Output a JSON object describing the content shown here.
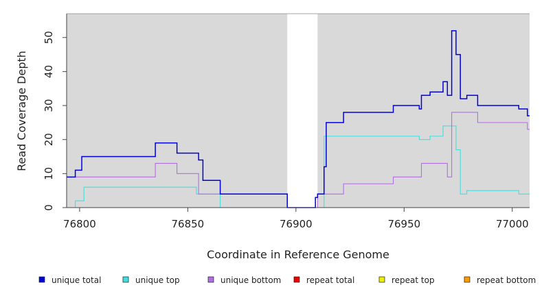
{
  "chart_data": {
    "type": "line",
    "step": true,
    "title": "",
    "xlabel": "Coordinate in Reference Genome",
    "ylabel": "Read Coverage Depth",
    "xlim": [
      76794,
      77008
    ],
    "ylim": [
      0,
      57
    ],
    "xticks": [
      76800,
      76850,
      76900,
      76950,
      77000
    ],
    "yticks": [
      0,
      10,
      20,
      30,
      40,
      50
    ],
    "grid": false,
    "background_color": "#d9d9d9",
    "shaded_regions": [
      {
        "x0": 76794,
        "x1": 76896
      },
      {
        "x0": 76910,
        "x1": 77008
      }
    ],
    "legend_position": "bottom",
    "series": [
      {
        "name": "unique total",
        "color": "#0000dd",
        "points": [
          [
            76794,
            9
          ],
          [
            76798,
            11
          ],
          [
            76801,
            15
          ],
          [
            76835,
            19
          ],
          [
            76845,
            16
          ],
          [
            76855,
            14
          ],
          [
            76857,
            8
          ],
          [
            76865,
            4
          ],
          [
            76896,
            0
          ],
          [
            76909,
            3
          ],
          [
            76910,
            4
          ],
          [
            76913,
            12
          ],
          [
            76914,
            25
          ],
          [
            76922,
            28
          ],
          [
            76945,
            30
          ],
          [
            76957,
            29
          ],
          [
            76958,
            33
          ],
          [
            76962,
            34
          ],
          [
            76968,
            37
          ],
          [
            76970,
            33
          ],
          [
            76972,
            52
          ],
          [
            76974,
            45
          ],
          [
            76976,
            32
          ],
          [
            76979,
            33
          ],
          [
            76984,
            30
          ],
          [
            77003,
            29
          ],
          [
            77007,
            27
          ],
          [
            77008,
            27
          ]
        ]
      },
      {
        "name": "unique top",
        "color": "#44dddd",
        "points": [
          [
            76794,
            0
          ],
          [
            76798,
            2
          ],
          [
            76802,
            6
          ],
          [
            76854,
            4
          ],
          [
            76865,
            0
          ],
          [
            76913,
            21
          ],
          [
            76957,
            20
          ],
          [
            76962,
            21
          ],
          [
            76968,
            24
          ],
          [
            76974,
            17
          ],
          [
            76976,
            4
          ],
          [
            76979,
            5
          ],
          [
            77003,
            4
          ],
          [
            77008,
            4
          ]
        ]
      },
      {
        "name": "unique bottom",
        "color": "#b06ee0",
        "points": [
          [
            76794,
            9
          ],
          [
            76835,
            13
          ],
          [
            76845,
            10
          ],
          [
            76855,
            4
          ],
          [
            76865,
            4
          ],
          [
            76896,
            0
          ],
          [
            76910,
            4
          ],
          [
            76922,
            7
          ],
          [
            76945,
            9
          ],
          [
            76958,
            13
          ],
          [
            76970,
            9
          ],
          [
            76972,
            28
          ],
          [
            76984,
            25
          ],
          [
            77007,
            23
          ],
          [
            77008,
            23
          ]
        ]
      },
      {
        "name": "repeat total",
        "color": "#ee0000",
        "points": [
          [
            76794,
            0
          ],
          [
            77008,
            0
          ]
        ]
      },
      {
        "name": "repeat top",
        "color": "#eeee00",
        "points": [
          [
            76794,
            0
          ],
          [
            77008,
            0
          ]
        ]
      },
      {
        "name": "repeat bottom",
        "color": "#ff9900",
        "points": [
          [
            76794,
            0
          ],
          [
            77008,
            0
          ]
        ]
      }
    ]
  }
}
